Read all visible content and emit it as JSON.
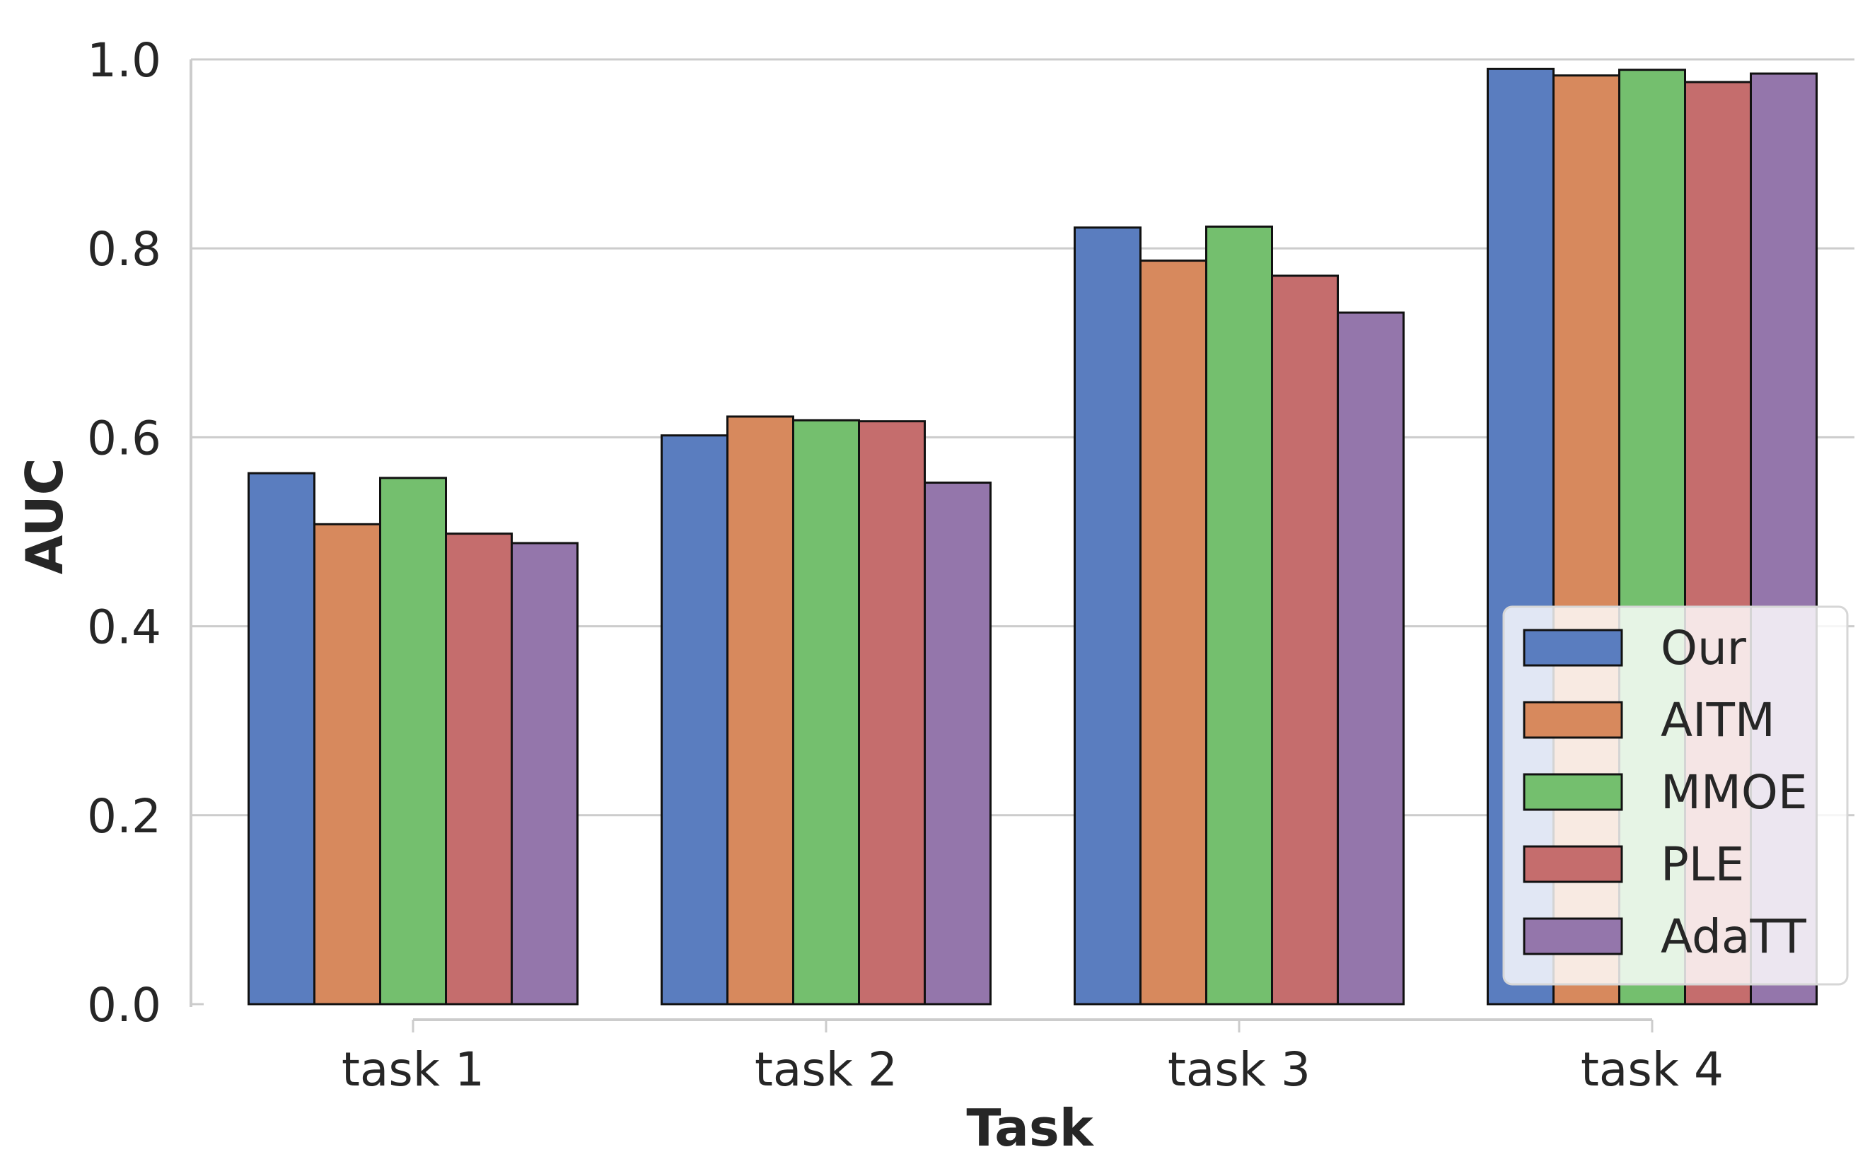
{
  "chart_data": {
    "type": "bar",
    "xlabel": "Task",
    "ylabel": "AUC",
    "categories": [
      "task 1",
      "task 2",
      "task 3",
      "task 4"
    ],
    "ylim": [
      0,
      1.0
    ],
    "yticks": [
      "0.0",
      "0.2",
      "0.4",
      "0.6",
      "0.8",
      "1.0"
    ],
    "grid": "horizontal",
    "legend_position": "lower-right",
    "series": [
      {
        "name": "Our",
        "color": "#5a7dbf",
        "values": [
          0.562,
          0.602,
          0.822,
          0.99
        ]
      },
      {
        "name": "AITM",
        "color": "#d7895d",
        "values": [
          0.508,
          0.622,
          0.787,
          0.983
        ]
      },
      {
        "name": "MMOE",
        "color": "#74bf6e",
        "values": [
          0.557,
          0.618,
          0.823,
          0.989
        ]
      },
      {
        "name": "PLE",
        "color": "#c56d6d",
        "values": [
          0.498,
          0.617,
          0.771,
          0.976
        ]
      },
      {
        "name": "AdaTT",
        "color": "#9476ab",
        "values": [
          0.488,
          0.552,
          0.732,
          0.985
        ]
      }
    ]
  }
}
